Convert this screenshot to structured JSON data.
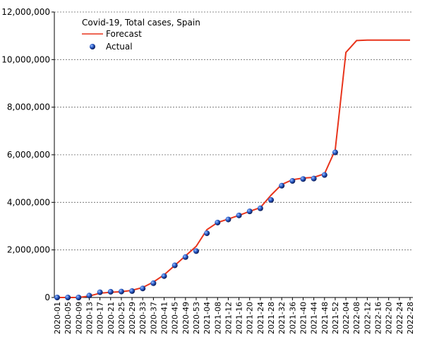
{
  "chart_data": {
    "type": "line",
    "title": "Covid-19, Total cases, Spain",
    "categories": [
      "2020-01",
      "2020-05",
      "2020-09",
      "2020-13",
      "2020-17",
      "2020-21",
      "2020-25",
      "2020-29",
      "2020-33",
      "2020-37",
      "2020-41",
      "2020-45",
      "2020-49",
      "2020-53",
      "2021-04",
      "2021-08",
      "2021-12",
      "2021-16",
      "2021-20",
      "2021-24",
      "2021-28",
      "2021-32",
      "2021-36",
      "2021-40",
      "2021-44",
      "2021-48",
      "2021-52",
      "2022-04",
      "2022-08",
      "2022-12",
      "2022-16",
      "2022-20",
      "2022-24",
      "2022-28"
    ],
    "series": [
      {
        "name": "Forecast",
        "color": "#e8341c",
        "marker": "line",
        "values": [
          0,
          0,
          0,
          60000,
          180000,
          220000,
          240000,
          300000,
          420000,
          650000,
          950000,
          1350000,
          1750000,
          2150000,
          2850000,
          3150000,
          3300000,
          3450000,
          3620000,
          3780000,
          4300000,
          4750000,
          4950000,
          5020000,
          5050000,
          5200000,
          6200000,
          10300000,
          10800000,
          10820000,
          10820000,
          10820000,
          10820000,
          10820000
        ]
      },
      {
        "name": "Actual",
        "color": "#2a5bc8",
        "marker": "dot",
        "values": [
          0,
          0,
          0,
          80000,
          220000,
          240000,
          250000,
          270000,
          380000,
          600000,
          900000,
          1350000,
          1700000,
          1950000,
          2700000,
          3150000,
          3280000,
          3450000,
          3620000,
          3750000,
          4100000,
          4700000,
          4900000,
          4980000,
          5000000,
          5150000,
          6100000,
          null,
          null,
          null,
          null,
          null,
          null,
          null
        ]
      }
    ],
    "ylim": [
      0,
      12000000
    ],
    "yticks": [
      0,
      {
        "value": 2000000,
        "label": "2,000,000"
      },
      {
        "value": 4000000,
        "label": "4,000,000"
      },
      {
        "value": 6000000,
        "label": "6,000,000"
      },
      {
        "value": 8000000,
        "label": "8,000,000"
      },
      {
        "value": 10000000,
        "label": "10,000,000"
      },
      {
        "value": 12000000,
        "label": "12,000,000"
      }
    ],
    "grid": true,
    "legend": "top-left"
  }
}
